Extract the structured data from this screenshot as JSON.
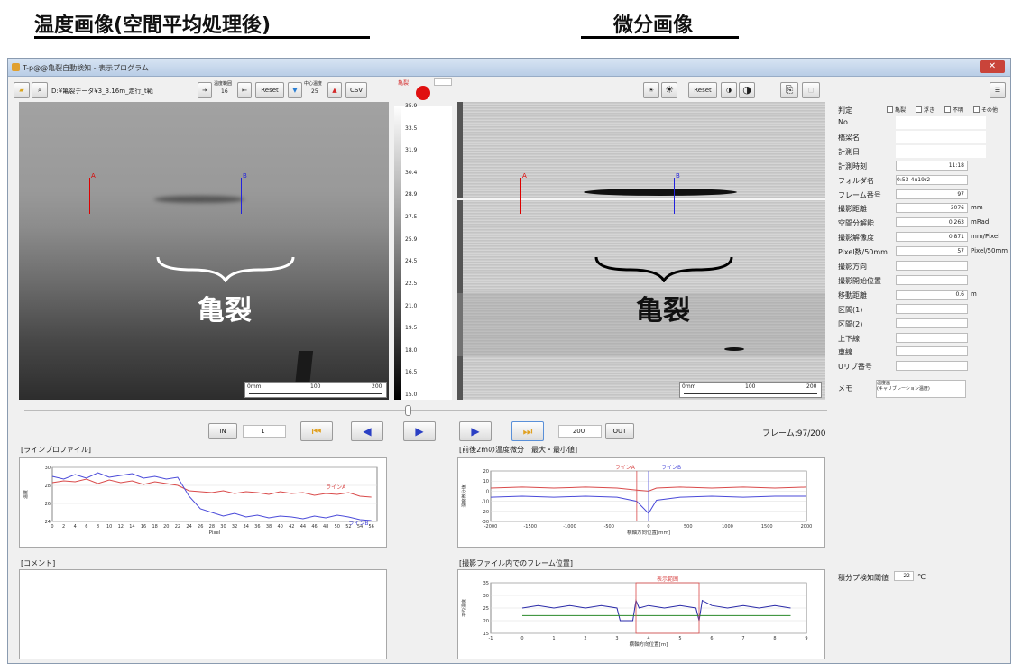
{
  "annotations": {
    "left_title": "温度画像(空間平均処理後)",
    "right_title": "微分画像",
    "crack_left": "亀裂",
    "crack_right": "亀裂"
  },
  "window": {
    "title": "T-p@@亀裂自動検知 - 表示プログラム"
  },
  "toolbar": {
    "file_path": "D:¥亀裂データ¥3_3.16m_走行_t範",
    "temp_range_label": "温度範囲",
    "temp_range_value": "16",
    "reset_label": "Reset",
    "center_temp_label": "中心温度",
    "center_temp_value": "25",
    "csv_label": "CSV",
    "crack_indicator_label": "亀裂",
    "right_reset_label": "Reset"
  },
  "colorbar": {
    "ticks": [
      "35.9",
      "33.5",
      "31.9",
      "30.4",
      "28.9",
      "27.5",
      "25.9",
      "24.5",
      "22.5",
      "21.0",
      "19.5",
      "18.0",
      "16.5",
      "15.0"
    ]
  },
  "scales": {
    "left": [
      "0mm",
      "100",
      "200"
    ],
    "right": [
      "0mm",
      "100",
      "200"
    ]
  },
  "lines": {
    "a": "A",
    "b": "B"
  },
  "playback": {
    "in_label": "IN",
    "in_value": "1",
    "out_value": "200",
    "out_label": "OUT",
    "frame_status": "フレーム:97/200"
  },
  "sidebar": {
    "judge_label": "判定",
    "checks": [
      "亀裂",
      "浮き",
      "不明",
      "その他"
    ],
    "rows": [
      {
        "label": "No.",
        "value": ""
      },
      {
        "label": "橋梁名",
        "value": ""
      },
      {
        "label": "計測日",
        "value": ""
      },
      {
        "label": "計測時刻",
        "value": "11:18",
        "unit": ""
      },
      {
        "label": "フォルダ名",
        "value": "0:53-4u19r2",
        "unit": ""
      },
      {
        "label": "フレーム番号",
        "value": "97",
        "unit": ""
      },
      {
        "label": "撮影距離",
        "value": "3076",
        "unit": "mm"
      },
      {
        "label": "空間分解能",
        "value": "0.263",
        "unit": "mRad"
      },
      {
        "label": "撮影解像度",
        "value": "0.871",
        "unit": "mm/Pixel"
      },
      {
        "label": "Pixel数/50mm",
        "value": "57",
        "unit": "Pixel/50mm"
      },
      {
        "label": "撮影方向",
        "value": "",
        "unit": ""
      },
      {
        "label": "撮影開始位置",
        "value": "",
        "unit": ""
      },
      {
        "label": "移動距離",
        "value": "0.6",
        "unit": "m"
      },
      {
        "label": "区間(1)",
        "value": "",
        "unit": ""
      },
      {
        "label": "区間(2)",
        "value": "",
        "unit": ""
      },
      {
        "label": "上下線",
        "value": "",
        "unit": ""
      },
      {
        "label": "車線",
        "value": "",
        "unit": ""
      },
      {
        "label": "Uリブ番号",
        "value": "",
        "unit": ""
      }
    ],
    "memo_label": "メモ",
    "memo_value": "温度画\n(キャリブレーション温度)",
    "threshold_label": "積分プ検知閾値",
    "threshold_value": "22",
    "threshold_unit": "℃"
  },
  "panels": {
    "line_profile": "[ラインプロファイル]",
    "temp_diff": "[前後2mの温度微分　最大・最小値]",
    "comment": "[コメント]",
    "frame_pos": "[撮影ファイル内でのフレーム位置]"
  },
  "charts": {
    "line_profile": {
      "ylabel": "温度",
      "xlabel": "Pixel",
      "series_a_label": "ラインA",
      "series_b_label": "ラインB"
    },
    "temp_diff": {
      "ylabel": "温度微分値",
      "xlabel": "横軸方向位置[mm]",
      "line_a": "ラインA",
      "line_b": "ラインB"
    },
    "frame_pos": {
      "ylabel": "平均温度",
      "xlabel": "横軸方向位置[m]",
      "display_label": "表示範囲"
    }
  },
  "chart_data": [
    {
      "type": "line",
      "title": "[ラインプロファイル]",
      "xlabel": "Pixel",
      "ylabel": "温度",
      "ylim": [
        24,
        30
      ],
      "xlim": [
        0,
        57
      ],
      "x_ticks": [
        0,
        2,
        4,
        6,
        8,
        10,
        12,
        14,
        16,
        18,
        20,
        22,
        24,
        26,
        28,
        30,
        32,
        34,
        36,
        38,
        40,
        42,
        44,
        46,
        48,
        50,
        52,
        54,
        56
      ],
      "y_ticks": [
        24,
        26,
        28,
        30
      ],
      "series": [
        {
          "name": "ラインA",
          "color": "#d94a4a",
          "x": [
            0,
            2,
            4,
            6,
            8,
            10,
            12,
            14,
            16,
            18,
            20,
            22,
            24,
            26,
            28,
            30,
            32,
            34,
            36,
            38,
            40,
            42,
            44,
            46,
            48,
            50,
            52,
            54,
            56
          ],
          "values": [
            28.3,
            28.5,
            28.4,
            28.7,
            28.2,
            28.6,
            28.3,
            28.5,
            28.1,
            28.4,
            28.2,
            28.0,
            27.4,
            27.3,
            27.2,
            27.4,
            27.1,
            27.3,
            27.2,
            27.0,
            27.3,
            27.1,
            27.2,
            26.9,
            27.1,
            27.0,
            27.2,
            26.8,
            26.7
          ]
        },
        {
          "name": "ラインB",
          "color": "#4a4ad9",
          "x": [
            0,
            2,
            4,
            6,
            8,
            10,
            12,
            14,
            16,
            18,
            20,
            22,
            24,
            26,
            28,
            30,
            32,
            34,
            36,
            38,
            40,
            42,
            44,
            46,
            48,
            50,
            52,
            54,
            56
          ],
          "values": [
            29.0,
            28.7,
            29.2,
            28.8,
            29.4,
            28.9,
            29.1,
            29.3,
            28.8,
            29.0,
            28.7,
            28.9,
            26.8,
            25.4,
            25.0,
            24.6,
            24.9,
            24.5,
            24.7,
            24.4,
            24.6,
            24.5,
            24.3,
            24.6,
            24.4,
            24.7,
            24.5,
            24.2,
            24.1
          ]
        }
      ]
    },
    {
      "type": "line",
      "title": "[前後2mの温度微分　最大・最小値]",
      "xlabel": "横軸方向位置[mm]",
      "ylabel": "温度微分値",
      "ylim": [
        -30,
        20
      ],
      "xlim": [
        -2000,
        2000
      ],
      "x_ticks": [
        -2000,
        -1500,
        -1000,
        -500,
        0,
        500,
        1000,
        1500,
        2000
      ],
      "y_ticks": [
        -30,
        -20,
        -10,
        0,
        10,
        20
      ],
      "series": [
        {
          "name": "ラインA",
          "color": "#d94a4a",
          "x": [
            -2000,
            -1600,
            -1200,
            -800,
            -400,
            -150,
            0,
            100,
            400,
            800,
            1200,
            1600,
            2000
          ],
          "values": [
            3,
            4,
            3,
            4,
            3,
            1,
            0,
            3,
            4,
            3,
            4,
            3,
            4
          ]
        },
        {
          "name": "ラインB",
          "color": "#4a4ad9",
          "x": [
            -2000,
            -1600,
            -1200,
            -800,
            -400,
            -150,
            0,
            100,
            400,
            800,
            1200,
            1600,
            2000
          ],
          "values": [
            -6,
            -5,
            -6,
            -5,
            -6,
            -10,
            -22,
            -9,
            -6,
            -5,
            -6,
            -5,
            -5
          ]
        }
      ]
    },
    {
      "type": "line",
      "title": "[撮影ファイル内でのフレーム位置]",
      "xlabel": "横軸方向位置[m]",
      "ylabel": "平均温度",
      "ylim": [
        15,
        35
      ],
      "xlim": [
        -1,
        9
      ],
      "x_ticks": [
        -1,
        0,
        1,
        2,
        3,
        4,
        5,
        6,
        7,
        8,
        9
      ],
      "y_ticks": [
        15,
        20,
        25,
        30,
        35
      ],
      "series": [
        {
          "name": "",
          "color": "#2a2aa8",
          "x": [
            0,
            0.5,
            1,
            1.5,
            2,
            2.5,
            3,
            3.1,
            3.2,
            3.5,
            3.6,
            3.7,
            4,
            4.5,
            5,
            5.5,
            5.6,
            5.7,
            6,
            6.5,
            7,
            7.5,
            8,
            8.5
          ],
          "values": [
            25,
            26,
            25,
            26,
            25,
            26,
            25,
            20,
            20,
            20,
            28,
            25,
            26,
            25,
            26,
            25,
            20,
            28,
            26,
            25,
            26,
            25,
            26,
            25
          ]
        },
        {
          "name": "",
          "color": "#2a8a2a",
          "x": [
            0,
            8.5
          ],
          "values": [
            22,
            22
          ]
        }
      ]
    }
  ]
}
